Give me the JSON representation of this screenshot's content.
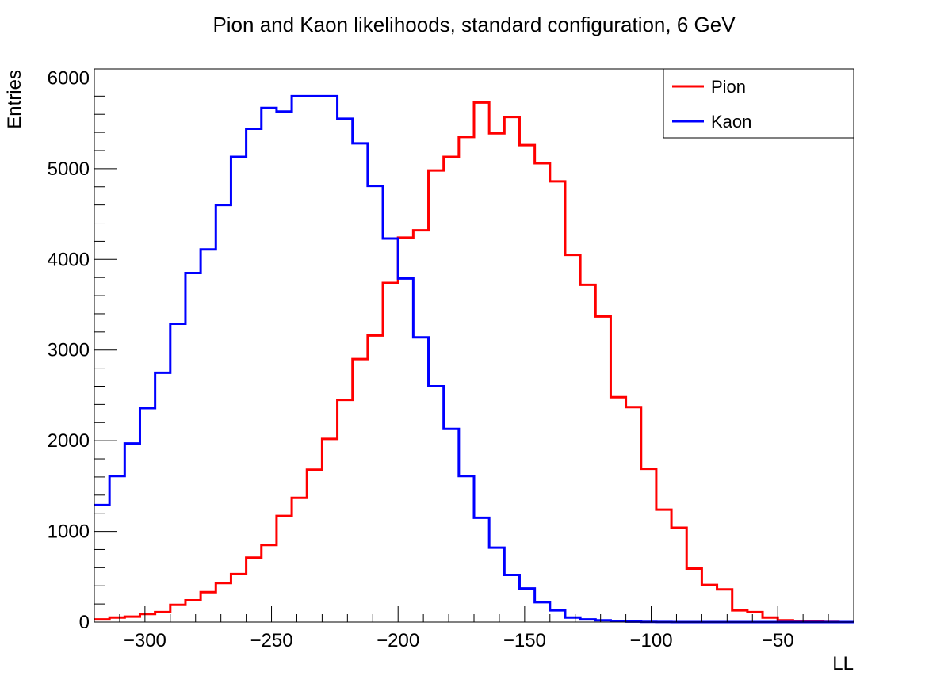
{
  "chart_data": {
    "type": "step",
    "title": "Pion and Kaon likelihoods, standard configuration, 6 GeV",
    "xlabel": "LL",
    "ylabel": "Entries",
    "xlim": [
      -320,
      -20
    ],
    "ylim": [
      0,
      6100
    ],
    "x_ticks": [
      -300,
      -250,
      -200,
      -150,
      -100,
      -50
    ],
    "x_tick_labels": [
      "−300",
      "−250",
      "−200",
      "−150",
      "−100",
      "−50"
    ],
    "y_ticks": [
      0,
      1000,
      2000,
      3000,
      4000,
      5000,
      6000
    ],
    "y_tick_labels": [
      "0",
      "1000",
      "2000",
      "3000",
      "4000",
      "5000",
      "6000"
    ],
    "grid": false,
    "legend_position": "top-right",
    "bin_start": -320,
    "bin_width": 6,
    "series": [
      {
        "name": "Pion",
        "color": "#ff0000",
        "values": [
          30,
          50,
          60,
          90,
          110,
          190,
          240,
          330,
          430,
          530,
          710,
          850,
          1170,
          1370,
          1680,
          2020,
          2450,
          2900,
          3160,
          3740,
          4240,
          4320,
          4980,
          5130,
          5350,
          5730,
          5390,
          5570,
          5260,
          5060,
          4860,
          4050,
          3720,
          3370,
          2480,
          2370,
          1690,
          1240,
          1040,
          590,
          410,
          360,
          130,
          110,
          50,
          20,
          10,
          5,
          2,
          0
        ]
      },
      {
        "name": "Kaon",
        "color": "#0000ff",
        "values": [
          1290,
          1610,
          1970,
          2360,
          2750,
          3290,
          3850,
          4110,
          4600,
          5130,
          5440,
          5670,
          5630,
          5800,
          5800,
          5800,
          5550,
          5280,
          4810,
          4230,
          3790,
          3140,
          2600,
          2130,
          1610,
          1150,
          820,
          520,
          370,
          220,
          130,
          50,
          30,
          20,
          10,
          5,
          2,
          1,
          0,
          0,
          0,
          0,
          0,
          0,
          0,
          0,
          0,
          0,
          0,
          0
        ]
      }
    ]
  }
}
